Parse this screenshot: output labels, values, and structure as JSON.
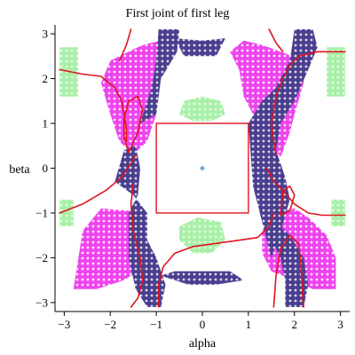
{
  "chart_data": {
    "type": "scatter",
    "title": "First joint of first leg",
    "xlabel": "alpha",
    "ylabel": "beta",
    "xlim": [
      -3.2,
      3.2
    ],
    "ylim": [
      -3.2,
      3.2
    ],
    "xticks": [
      -3,
      -2,
      -1,
      0,
      1,
      2,
      3
    ],
    "yticks": [
      -3,
      -2,
      -1,
      0,
      1,
      2,
      3
    ],
    "grid": false,
    "colors": {
      "magenta": "#ee44ee",
      "navy": "#4a3f8f",
      "green": "#a8f0a8",
      "curve": "#e0141e",
      "point": "#6fa8dc"
    },
    "regions": [
      {
        "name": "magenta",
        "polygon": [
          [
            -2.8,
            -2.7
          ],
          [
            -2.6,
            -1.4
          ],
          [
            -2.2,
            -0.9
          ],
          [
            -1.6,
            -0.95
          ],
          [
            -1.3,
            -1.4
          ],
          [
            -1.25,
            -2.2
          ],
          [
            -1.7,
            -2.5
          ],
          [
            -2.3,
            -2.7
          ]
        ]
      },
      {
        "name": "magenta",
        "polygon": [
          [
            -2.2,
            1.9
          ],
          [
            -2.0,
            2.4
          ],
          [
            -1.6,
            2.6
          ],
          [
            -1.3,
            2.75
          ],
          [
            -0.9,
            2.85
          ],
          [
            -0.6,
            2.6
          ],
          [
            -1.0,
            2.2
          ],
          [
            -1.1,
            1.8
          ],
          [
            -1.0,
            1.2
          ],
          [
            -1.2,
            0.6
          ],
          [
            -1.5,
            0.3
          ],
          [
            -1.8,
            0.6
          ],
          [
            -2.0,
            1.2
          ]
        ]
      },
      {
        "name": "magenta",
        "polygon": [
          [
            0.6,
            2.6
          ],
          [
            0.9,
            2.85
          ],
          [
            1.3,
            2.75
          ],
          [
            1.7,
            2.6
          ],
          [
            2.2,
            2.4
          ],
          [
            2.2,
            1.9
          ],
          [
            2.0,
            1.2
          ],
          [
            1.9,
            0.8
          ],
          [
            1.7,
            0.25
          ],
          [
            1.5,
            0.5
          ],
          [
            1.2,
            1.0
          ],
          [
            0.9,
            1.6
          ],
          [
            0.8,
            2.2
          ]
        ]
      },
      {
        "name": "magenta",
        "polygon": [
          [
            1.3,
            -1.4
          ],
          [
            1.5,
            -1.0
          ],
          [
            2.0,
            -0.9
          ],
          [
            2.3,
            -1.1
          ],
          [
            2.7,
            -1.5
          ],
          [
            2.9,
            -2.0
          ],
          [
            2.9,
            -2.7
          ],
          [
            2.4,
            -2.7
          ],
          [
            2.0,
            -2.5
          ],
          [
            1.5,
            -2.3
          ],
          [
            1.3,
            -1.9
          ]
        ]
      },
      {
        "name": "navy",
        "polygon": [
          [
            -1.9,
            -0.3
          ],
          [
            -1.7,
            0.4
          ],
          [
            -1.45,
            0.5
          ],
          [
            -1.35,
            0.0
          ],
          [
            -1.4,
            -0.6
          ],
          [
            -1.6,
            -1.0
          ],
          [
            -1.6,
            -2.0
          ],
          [
            -1.45,
            -2.7
          ],
          [
            -1.2,
            -3.1
          ],
          [
            -0.9,
            -3.1
          ],
          [
            -0.8,
            -2.6
          ],
          [
            -1.0,
            -2.0
          ],
          [
            -1.2,
            -1.6
          ],
          [
            -1.2,
            -1.0
          ],
          [
            -1.5,
            -0.6
          ]
        ]
      },
      {
        "name": "navy",
        "polygon": [
          [
            -1.35,
            1.0
          ],
          [
            -1.1,
            1.8
          ],
          [
            -1.0,
            2.4
          ],
          [
            -0.95,
            3.1
          ],
          [
            -0.5,
            3.1
          ],
          [
            -0.55,
            2.6
          ],
          [
            -0.9,
            2.0
          ],
          [
            -1.0,
            1.2
          ]
        ]
      },
      {
        "name": "navy",
        "polygon": [
          [
            -0.4,
            2.5
          ],
          [
            -0.6,
            2.9
          ],
          [
            0.0,
            2.85
          ],
          [
            0.5,
            2.9
          ],
          [
            0.3,
            2.5
          ]
        ]
      },
      {
        "name": "navy",
        "polygon": [
          [
            1.0,
            1.0
          ],
          [
            1.3,
            1.5
          ],
          [
            1.6,
            1.8
          ],
          [
            1.9,
            2.4
          ],
          [
            2.0,
            3.1
          ],
          [
            2.4,
            3.1
          ],
          [
            2.5,
            2.7
          ],
          [
            2.3,
            2.2
          ],
          [
            2.0,
            1.5
          ],
          [
            1.7,
            1.0
          ],
          [
            1.6,
            0.4
          ],
          [
            1.8,
            -0.2
          ],
          [
            1.9,
            -0.7
          ],
          [
            1.7,
            -1.4
          ],
          [
            1.5,
            -2.0
          ],
          [
            1.3,
            -1.2
          ],
          [
            1.1,
            -0.4
          ],
          [
            1.05,
            0.3
          ]
        ]
      },
      {
        "name": "navy",
        "polygon": [
          [
            1.6,
            -1.2
          ],
          [
            1.9,
            -1.5
          ],
          [
            2.2,
            -2.0
          ],
          [
            2.3,
            -2.6
          ],
          [
            2.2,
            -3.1
          ],
          [
            1.8,
            -3.1
          ],
          [
            1.8,
            -2.5
          ],
          [
            1.7,
            -2.0
          ],
          [
            1.5,
            -1.6
          ]
        ]
      },
      {
        "name": "navy",
        "polygon": [
          [
            -0.9,
            -2.4
          ],
          [
            -0.6,
            -2.3
          ],
          [
            0.0,
            -2.3
          ],
          [
            0.6,
            -2.3
          ],
          [
            0.9,
            -2.5
          ],
          [
            0.3,
            -2.6
          ],
          [
            -0.3,
            -2.6
          ]
        ]
      },
      {
        "name": "green",
        "polygon": [
          [
            -3.1,
            1.6
          ],
          [
            -3.1,
            2.7
          ],
          [
            -2.7,
            2.7
          ],
          [
            -2.7,
            1.6
          ]
        ]
      },
      {
        "name": "green",
        "polygon": [
          [
            2.7,
            1.6
          ],
          [
            2.7,
            2.7
          ],
          [
            3.1,
            2.7
          ],
          [
            3.1,
            1.6
          ]
        ]
      },
      {
        "name": "green",
        "polygon": [
          [
            -3.1,
            -1.3
          ],
          [
            -3.1,
            -0.7
          ],
          [
            -2.8,
            -0.7
          ],
          [
            -2.8,
            -1.3
          ]
        ]
      },
      {
        "name": "green",
        "polygon": [
          [
            2.8,
            -1.3
          ],
          [
            2.8,
            -0.7
          ],
          [
            3.1,
            -0.7
          ],
          [
            3.1,
            -1.3
          ]
        ]
      },
      {
        "name": "green",
        "polygon": [
          [
            -0.5,
            -1.6
          ],
          [
            -0.5,
            -1.3
          ],
          [
            -0.1,
            -1.1
          ],
          [
            0.4,
            -1.2
          ],
          [
            0.5,
            -1.6
          ],
          [
            0.2,
            -1.9
          ],
          [
            -0.2,
            -1.9
          ]
        ]
      },
      {
        "name": "green",
        "polygon": [
          [
            -0.5,
            1.2
          ],
          [
            -0.4,
            1.5
          ],
          [
            0.0,
            1.6
          ],
          [
            0.4,
            1.5
          ],
          [
            0.5,
            1.2
          ],
          [
            0.2,
            1.05
          ],
          [
            -0.2,
            1.05
          ]
        ]
      }
    ],
    "curves": [
      {
        "points": [
          [
            -3.1,
            2.2
          ],
          [
            -2.6,
            2.1
          ],
          [
            -2.2,
            2.05
          ],
          [
            -1.9,
            1.8
          ],
          [
            -1.75,
            1.5
          ],
          [
            -1.7,
            1.2
          ],
          [
            -1.65,
            0.9
          ],
          [
            -1.65,
            0.6
          ]
        ]
      },
      {
        "points": [
          [
            -1.8,
            2.4
          ],
          [
            -1.65,
            2.75
          ],
          [
            -1.55,
            3.1
          ]
        ]
      },
      {
        "points": [
          [
            -1.6,
            0.35
          ],
          [
            -1.7,
            0.7
          ],
          [
            -1.7,
            1.1
          ],
          [
            -1.6,
            1.5
          ],
          [
            -1.4,
            1.6
          ],
          [
            -1.3,
            1.3
          ],
          [
            -1.4,
            0.8
          ],
          [
            -1.6,
            0.35
          ]
        ]
      },
      {
        "points": [
          [
            -3.1,
            -1.0
          ],
          [
            -2.6,
            -0.8
          ],
          [
            -2.1,
            -0.5
          ],
          [
            -1.75,
            -0.2
          ],
          [
            -1.55,
            0.1
          ],
          [
            -1.45,
            0.3
          ]
        ]
      },
      {
        "points": [
          [
            -1.5,
            -0.35
          ],
          [
            -1.55,
            -0.8
          ],
          [
            -1.5,
            -1.4
          ],
          [
            -1.35,
            -2.0
          ],
          [
            -1.3,
            -2.5
          ],
          [
            -1.4,
            -2.9
          ],
          [
            -1.55,
            -3.1
          ]
        ]
      },
      {
        "points": [
          [
            -0.95,
            -3.1
          ],
          [
            -0.95,
            -2.6
          ],
          [
            -0.85,
            -2.2
          ],
          [
            -0.6,
            -1.9
          ],
          [
            -0.2,
            -1.75
          ],
          [
            0.5,
            -1.65
          ],
          [
            1.2,
            -1.55
          ],
          [
            1.45,
            -1.3
          ],
          [
            1.55,
            -1.0
          ]
        ]
      },
      {
        "points": [
          [
            1.6,
            0.3
          ],
          [
            1.55,
            0.6
          ],
          [
            1.5,
            1.0
          ],
          [
            1.6,
            1.6
          ],
          [
            1.75,
            2.0
          ],
          [
            1.9,
            2.3
          ],
          [
            2.1,
            2.5
          ],
          [
            2.5,
            2.6
          ],
          [
            3.1,
            2.6
          ]
        ]
      },
      {
        "points": [
          [
            1.45,
            3.1
          ],
          [
            1.6,
            2.8
          ],
          [
            1.75,
            2.6
          ]
        ]
      },
      {
        "points": [
          [
            1.4,
            0.0
          ],
          [
            1.55,
            -0.3
          ],
          [
            1.75,
            -0.5
          ],
          [
            2.0,
            -0.8
          ],
          [
            2.3,
            -1.0
          ],
          [
            2.6,
            -1.05
          ],
          [
            3.1,
            -1.05
          ]
        ]
      },
      {
        "points": [
          [
            1.7,
            -1.05
          ],
          [
            1.75,
            -0.5
          ],
          [
            1.9,
            -0.4
          ],
          [
            2.0,
            -0.6
          ],
          [
            1.9,
            -0.95
          ],
          [
            1.7,
            -1.05
          ]
        ]
      },
      {
        "points": [
          [
            1.55,
            -3.1
          ],
          [
            1.6,
            -2.4
          ],
          [
            1.7,
            -1.8
          ],
          [
            1.9,
            -1.5
          ],
          [
            2.1,
            -1.7
          ],
          [
            2.15,
            -2.3
          ],
          [
            2.2,
            -3.1
          ]
        ]
      }
    ],
    "rectangle": {
      "x": [
        -1,
        1
      ],
      "y": [
        -1,
        1
      ]
    },
    "point": {
      "x": 0,
      "y": 0
    }
  }
}
